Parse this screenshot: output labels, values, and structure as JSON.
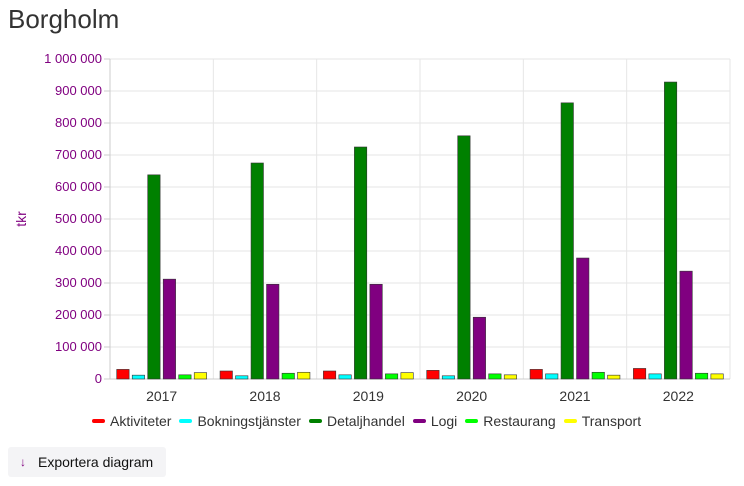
{
  "page": {
    "title": "Borgholm",
    "export_label": "Exportera diagram",
    "export_icon": "download-arrow-icon"
  },
  "chart_data": {
    "type": "bar",
    "title": "",
    "xlabel": "",
    "ylabel": "tkr",
    "ylim": [
      0,
      1000000
    ],
    "yticks": [
      "0",
      "100 000",
      "200 000",
      "300 000",
      "400 000",
      "500 000",
      "600 000",
      "700 000",
      "800 000",
      "900 000",
      "1 000 000"
    ],
    "categories": [
      "2017",
      "2018",
      "2019",
      "2020",
      "2021",
      "2022"
    ],
    "grid": true,
    "legend_position": "bottom",
    "series": [
      {
        "name": "Aktiviteter",
        "color": "#ff0000",
        "values": [
          30000,
          25000,
          25000,
          27000,
          30000,
          33000
        ]
      },
      {
        "name": "Bokningstjänster",
        "color": "#00ffff",
        "values": [
          12000,
          10000,
          13000,
          10000,
          16000,
          16000
        ]
      },
      {
        "name": "Detaljhandel",
        "color": "#008000",
        "values": [
          638000,
          675000,
          725000,
          760000,
          863000,
          928000
        ]
      },
      {
        "name": "Logi",
        "color": "#800080",
        "values": [
          312000,
          296000,
          296000,
          193000,
          378000,
          337000
        ]
      },
      {
        "name": "Restaurang",
        "color": "#00ff00",
        "values": [
          13000,
          18000,
          16000,
          16000,
          21000,
          18000
        ]
      },
      {
        "name": "Transport",
        "color": "#ffff00",
        "values": [
          20000,
          21000,
          20000,
          13000,
          12000,
          16000
        ]
      }
    ]
  }
}
